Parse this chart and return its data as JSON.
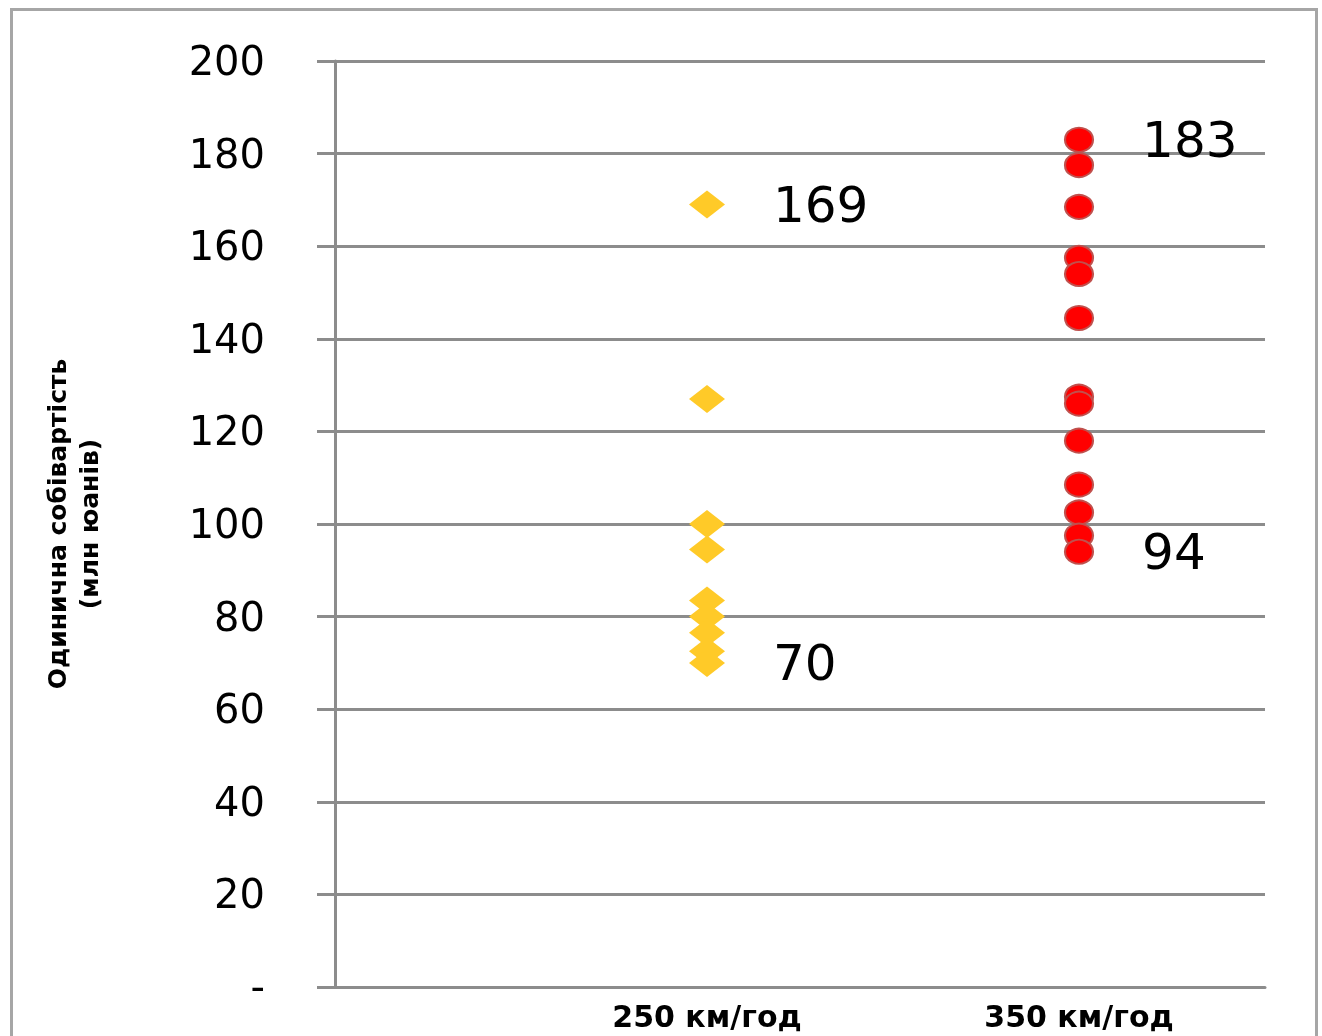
{
  "chart_data": {
    "type": "scatter",
    "ylabel": "Одинична собівартість\n(млн юанів)",
    "categories": [
      null,
      null,
      "250 км/год",
      null,
      "350 км/год",
      null
    ],
    "series": [
      {
        "x": [
          "250 км/год",
          "250 км/год",
          "250 км/год",
          "250 км/год",
          "250 км/год",
          "250 км/год",
          "250 км/год",
          "250 км/год",
          "250 км/год"
        ],
        "values": [
          169,
          127,
          100,
          94.5,
          83.5,
          80,
          76.5,
          72.5,
          70
        ],
        "value_labels": [
          "169",
          null,
          null,
          null,
          null,
          null,
          null,
          null,
          "70"
        ],
        "color": "#ffca28",
        "marker": "diamond"
      },
      {
        "x": [
          "350 км/год",
          "350 км/год",
          "350 км/год",
          "350 км/год",
          "350 км/год",
          "350 км/год",
          "350 км/год",
          "350 км/год",
          "350 км/год",
          "350 км/год",
          "350 км/год",
          "350 км/год",
          "350 км/год"
        ],
        "values": [
          183,
          177.5,
          168.5,
          157.5,
          154,
          144.5,
          127.5,
          126,
          118,
          108.5,
          102.5,
          97.5,
          94
        ],
        "value_labels": [
          "183",
          null,
          null,
          null,
          null,
          null,
          null,
          null,
          null,
          null,
          null,
          null,
          "94"
        ],
        "color": "#ff0000",
        "marker": "circle"
      }
    ],
    "ylim": [
      0,
      200
    ],
    "yticks": [
      {
        "value": 0,
        "label": "-"
      },
      20,
      40,
      60,
      80,
      100,
      120,
      140,
      160,
      180,
      200
    ],
    "grid": "y"
  }
}
